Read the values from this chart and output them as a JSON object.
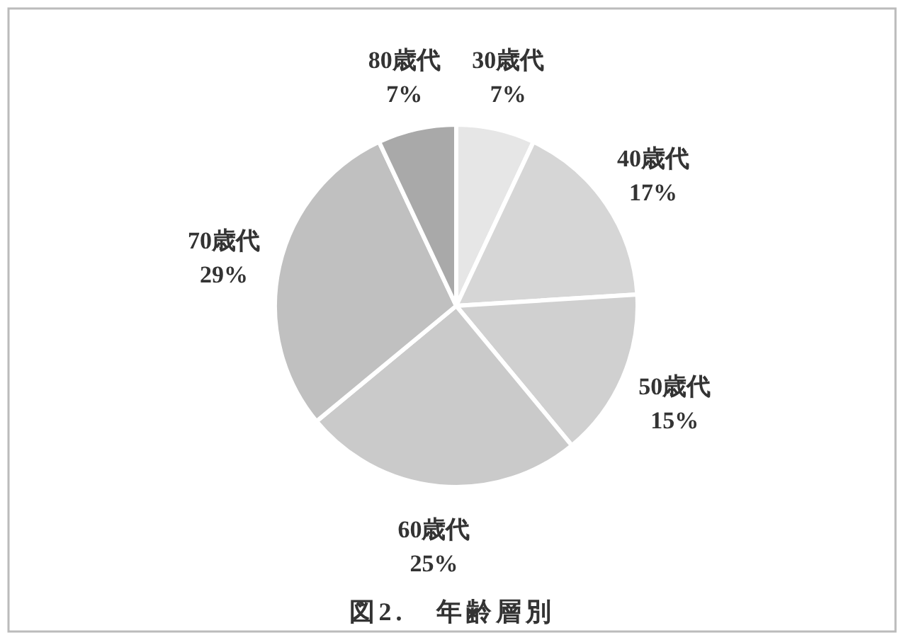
{
  "chart_data": {
    "type": "pie",
    "title": "図2.　年齢層別",
    "categories": [
      "30歳代",
      "40歳代",
      "50歳代",
      "60歳代",
      "70歳代",
      "80歳代"
    ],
    "values": [
      7,
      17,
      15,
      25,
      29,
      7
    ],
    "value_labels": [
      "7%",
      "17%",
      "15%",
      "25%",
      "29%",
      "7%"
    ],
    "colors": [
      "#e6e6e6",
      "#d6d6d6",
      "#d0d0d0",
      "#cacaca",
      "#c0c0c0",
      "#a9a9a9"
    ]
  }
}
